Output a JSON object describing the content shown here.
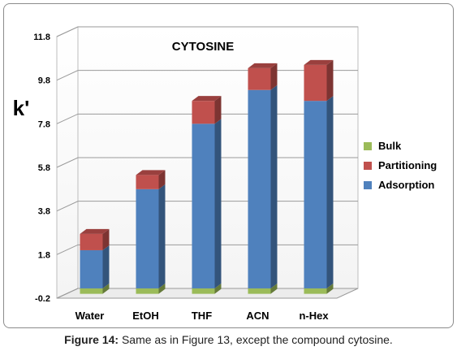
{
  "chart_data": {
    "type": "bar",
    "stacked": true,
    "three_d": true,
    "title": "CYTOSINE",
    "ylabel": "k'",
    "xlabel": "",
    "ylim": [
      -0.2,
      11.8
    ],
    "yticks": [
      "-0.2",
      "1.8",
      "3.8",
      "5.8",
      "7.8",
      "9.8",
      "11.8"
    ],
    "grid": true,
    "legend_position": "right",
    "categories": [
      "Water",
      "EtOH",
      "THF",
      "ACN",
      "n-Hex"
    ],
    "series": [
      {
        "name": "Bulk",
        "color": "#9bbb59",
        "values": [
          0.25,
          0.25,
          0.25,
          0.25,
          0.25
        ]
      },
      {
        "name": "Adsorption",
        "color": "#4f81bd",
        "values": [
          1.75,
          4.55,
          7.55,
          9.1,
          8.6
        ]
      },
      {
        "name": "Partitioning",
        "color": "#c0504d",
        "values": [
          0.75,
          0.65,
          1.05,
          1.0,
          1.65
        ]
      }
    ],
    "legend_order": [
      "Bulk",
      "Partitioning",
      "Adsorption"
    ]
  },
  "caption": {
    "label": "Figure 14:",
    "text": " Same as in Figure 13, except the compound cytosine."
  }
}
